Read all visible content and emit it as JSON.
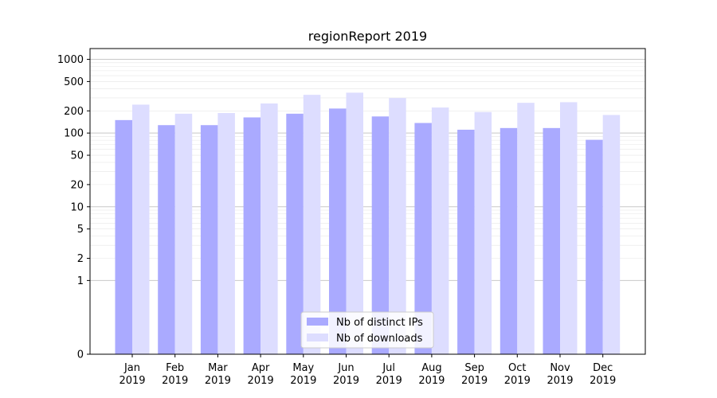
{
  "chart_data": {
    "type": "bar",
    "title": "regionReport 2019",
    "xlabel": "",
    "ylabel": "",
    "yscale": "symlog",
    "ylim": [
      0,
      1400
    ],
    "grid": true,
    "legend_placement": "bottom-center",
    "categories": [
      [
        "Jan",
        "2019"
      ],
      [
        "Feb",
        "2019"
      ],
      [
        "Mar",
        "2019"
      ],
      [
        "Apr",
        "2019"
      ],
      [
        "May",
        "2019"
      ],
      [
        "Jun",
        "2019"
      ],
      [
        "Jul",
        "2019"
      ],
      [
        "Aug",
        "2019"
      ],
      [
        "Sep",
        "2019"
      ],
      [
        "Oct",
        "2019"
      ],
      [
        "Nov",
        "2019"
      ],
      [
        "Dec",
        "2019"
      ]
    ],
    "yticks": [
      0,
      1,
      2,
      5,
      10,
      20,
      50,
      100,
      200,
      500,
      1000
    ],
    "series": [
      {
        "name": "Nb of distinct IPs",
        "color": "#aaaaff",
        "values": [
          150,
          128,
          128,
          163,
          183,
          215,
          168,
          137,
          111,
          117,
          117,
          81
        ]
      },
      {
        "name": "Nb of downloads",
        "color": "#ddddff",
        "values": [
          243,
          183,
          187,
          252,
          330,
          353,
          299,
          222,
          193,
          257,
          262,
          176
        ]
      }
    ]
  }
}
